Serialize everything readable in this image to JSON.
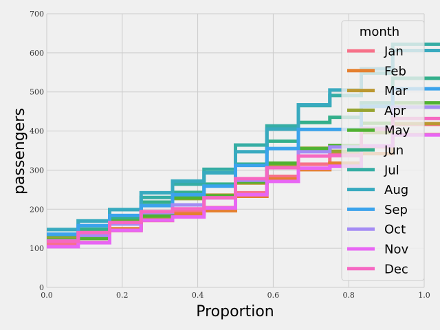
{
  "chart_data": {
    "type": "line",
    "subtype": "ecdf-step",
    "xlabel": "Proportion",
    "ylabel": "passengers",
    "xlim": [
      0.0,
      1.0
    ],
    "ylim": [
      0,
      700
    ],
    "xticks": [
      "0.0",
      "0.2",
      "0.4",
      "0.6",
      "0.8",
      "1.0"
    ],
    "yticks": [
      "0",
      "100",
      "200",
      "300",
      "400",
      "500",
      "600",
      "700"
    ],
    "grid": true,
    "legend": {
      "title": "month",
      "placement": "top-right"
    },
    "series": [
      {
        "name": "Jan",
        "color": "#f77189",
        "values": [
          112,
          115,
          145,
          171,
          196,
          204,
          242,
          284,
          315,
          340,
          360,
          417
        ]
      },
      {
        "name": "Feb",
        "color": "#e5802f",
        "values": [
          118,
          126,
          150,
          180,
          196,
          188,
          233,
          277,
          301,
          318,
          342,
          391
        ]
      },
      {
        "name": "Mar",
        "color": "#bb9832",
        "values": [
          132,
          141,
          178,
          193,
          236,
          235,
          267,
          317,
          356,
          362,
          406,
          419
        ]
      },
      {
        "name": "Apr",
        "color": "#97a431",
        "values": [
          129,
          135,
          163,
          181,
          235,
          227,
          269,
          313,
          348,
          348,
          396,
          461
        ]
      },
      {
        "name": "May",
        "color": "#50b131",
        "values": [
          121,
          125,
          172,
          183,
          229,
          234,
          270,
          318,
          355,
          363,
          420,
          472
        ]
      },
      {
        "name": "Jun",
        "color": "#34af8b",
        "values": [
          135,
          149,
          178,
          218,
          243,
          264,
          315,
          374,
          422,
          435,
          472,
          535
        ]
      },
      {
        "name": "Jul",
        "color": "#36ada4",
        "values": [
          148,
          170,
          199,
          230,
          264,
          302,
          364,
          413,
          465,
          491,
          548,
          622
        ]
      },
      {
        "name": "Aug",
        "color": "#38aabf",
        "values": [
          148,
          170,
          199,
          242,
          272,
          293,
          347,
          405,
          467,
          505,
          559,
          606
        ]
      },
      {
        "name": "Sep",
        "color": "#3ba3ec",
        "values": [
          136,
          158,
          184,
          209,
          237,
          259,
          312,
          355,
          404,
          404,
          463,
          508
        ]
      },
      {
        "name": "Oct",
        "color": "#a48cf4",
        "values": [
          119,
          133,
          162,
          191,
          211,
          229,
          274,
          306,
          347,
          359,
          407,
          461
        ]
      },
      {
        "name": "Nov",
        "color": "#e866f4",
        "values": [
          104,
          114,
          146,
          172,
          180,
          203,
          237,
          271,
          305,
          310,
          362,
          390
        ]
      },
      {
        "name": "Dec",
        "color": "#f668c2",
        "values": [
          118,
          140,
          166,
          194,
          201,
          229,
          278,
          306,
          336,
          337,
          405,
          432
        ]
      }
    ]
  }
}
